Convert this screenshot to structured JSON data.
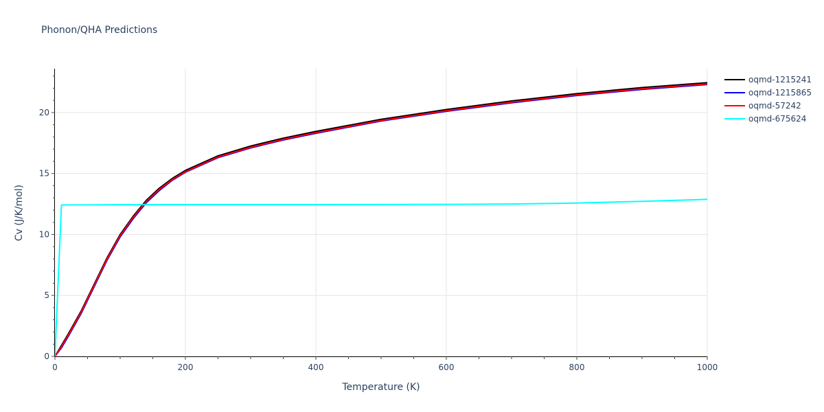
{
  "title": "Phonon/QHA Predictions",
  "legend": [
    {
      "name": "oqmd-1215241",
      "color": "#000000"
    },
    {
      "name": "oqmd-1215865",
      "color": "#0000ff"
    },
    {
      "name": "oqmd-57242",
      "color": "#ff0000"
    },
    {
      "name": "oqmd-675624",
      "color": "#00ffff"
    }
  ],
  "chart_data": {
    "type": "line",
    "title": "Phonon/QHA Predictions",
    "xlabel": "Temperature (K)",
    "ylabel": "Cv (J/K/mol)",
    "xlim": [
      0,
      1000
    ],
    "ylim": [
      0,
      23.6
    ],
    "xticks": [
      0,
      200,
      400,
      600,
      800,
      1000
    ],
    "yticks": [
      0,
      5,
      10,
      15,
      20
    ],
    "grid": true,
    "legend_position": "right-top",
    "series": [
      {
        "name": "oqmd-1215241",
        "color": "#000000",
        "x": [
          0,
          10,
          20,
          40,
          60,
          80,
          100,
          120,
          140,
          160,
          180,
          200,
          250,
          300,
          350,
          400,
          500,
          600,
          700,
          800,
          900,
          1000
        ],
        "y": [
          0,
          0.9,
          1.8,
          3.7,
          5.9,
          8.1,
          10.0,
          11.5,
          12.8,
          13.8,
          14.6,
          15.25,
          16.45,
          17.25,
          17.9,
          18.45,
          19.45,
          20.25,
          20.95,
          21.55,
          22.05,
          22.45
        ]
      },
      {
        "name": "oqmd-1215865",
        "color": "#0000ff",
        "x": [
          0,
          10,
          20,
          40,
          60,
          80,
          100,
          120,
          140,
          160,
          180,
          200,
          250,
          300,
          350,
          400,
          500,
          600,
          700,
          800,
          900,
          1000
        ],
        "y": [
          0,
          0.7,
          1.6,
          3.5,
          5.7,
          7.9,
          9.8,
          11.3,
          12.6,
          13.6,
          14.45,
          15.1,
          16.3,
          17.1,
          17.75,
          18.3,
          19.3,
          20.1,
          20.8,
          21.4,
          21.9,
          22.3
        ]
      },
      {
        "name": "oqmd-57242",
        "color": "#ff0000",
        "x": [
          0,
          10,
          20,
          40,
          60,
          80,
          100,
          120,
          140,
          160,
          180,
          200,
          250,
          300,
          350,
          400,
          500,
          600,
          700,
          800,
          900,
          1000
        ],
        "y": [
          0,
          0.8,
          1.7,
          3.6,
          5.8,
          8.0,
          9.9,
          11.4,
          12.7,
          13.7,
          14.5,
          15.15,
          16.35,
          17.15,
          17.8,
          18.35,
          19.35,
          20.15,
          20.85,
          21.45,
          21.95,
          22.35
        ]
      },
      {
        "name": "oqmd-675624",
        "color": "#00ffff",
        "x": [
          0,
          10,
          100,
          200,
          400,
          600,
          700,
          800,
          900,
          1000
        ],
        "y": [
          0,
          12.42,
          12.44,
          12.45,
          12.45,
          12.47,
          12.5,
          12.58,
          12.72,
          12.88
        ]
      }
    ]
  }
}
